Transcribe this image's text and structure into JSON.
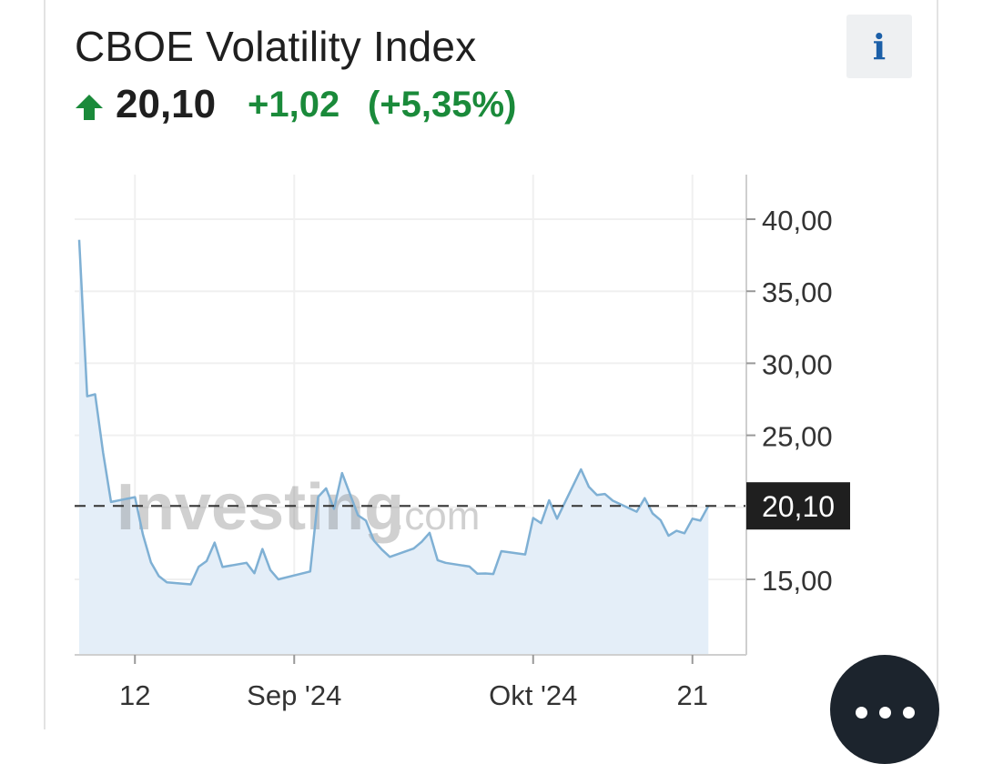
{
  "header": {
    "title": "CBOE Volatility Index",
    "info_label": "i",
    "price": "20,10",
    "change": "+1,02",
    "change_pct": "(+5,35%)",
    "direction": "up"
  },
  "watermark": {
    "brand": "Investing",
    "suffix": ".com"
  },
  "colors": {
    "up": "#1a8a3a",
    "line": "#7fb0d4",
    "area": "#e4eef8",
    "price_tag_bg": "#1f1f1f",
    "more_button": "#1c242d"
  },
  "more_button": {
    "icon": "more-horizontal-icon"
  },
  "chart_data": {
    "type": "area",
    "ylim": [
      10,
      40
    ],
    "yticks": [
      {
        "value": 15,
        "label": "15,00"
      },
      {
        "value": 20,
        "label": "20,00"
      },
      {
        "value": 25,
        "label": "25,00"
      },
      {
        "value": 30,
        "label": "30,00"
      },
      {
        "value": 35,
        "label": "35,00"
      },
      {
        "value": 40,
        "label": "40,00"
      }
    ],
    "xlim": [
      "2024-08-05",
      "2024-10-24"
    ],
    "xticks": [
      {
        "x": "2024-08-12",
        "label": "12"
      },
      {
        "x": "2024-09-01",
        "label": "Sep '24"
      },
      {
        "x": "2024-10-01",
        "label": "Okt '24"
      },
      {
        "x": "2024-10-21",
        "label": "21"
      }
    ],
    "last_value": 20.1,
    "last_value_label": "20,10",
    "series": [
      {
        "points": [
          [
            "2024-08-05",
            38.57
          ],
          [
            "2024-08-06",
            27.71
          ],
          [
            "2024-08-07",
            27.85
          ],
          [
            "2024-08-08",
            23.79
          ],
          [
            "2024-08-09",
            20.37
          ],
          [
            "2024-08-12",
            20.71
          ],
          [
            "2024-08-13",
            18.12
          ],
          [
            "2024-08-14",
            16.19
          ],
          [
            "2024-08-15",
            15.23
          ],
          [
            "2024-08-16",
            14.8
          ],
          [
            "2024-08-19",
            14.65
          ],
          [
            "2024-08-20",
            15.88
          ],
          [
            "2024-08-21",
            16.27
          ],
          [
            "2024-08-22",
            17.55
          ],
          [
            "2024-08-23",
            15.86
          ],
          [
            "2024-08-26",
            16.15
          ],
          [
            "2024-08-27",
            15.43
          ],
          [
            "2024-08-28",
            17.11
          ],
          [
            "2024-08-29",
            15.65
          ],
          [
            "2024-08-30",
            15.0
          ],
          [
            "2024-09-03",
            15.55
          ],
          [
            "2024-09-04",
            20.72
          ],
          [
            "2024-09-05",
            21.32
          ],
          [
            "2024-09-06",
            19.9
          ],
          [
            "2024-09-07",
            22.38
          ],
          [
            "2024-09-09",
            19.45
          ],
          [
            "2024-09-10",
            19.08
          ],
          [
            "2024-09-11",
            17.69
          ],
          [
            "2024-09-12",
            17.07
          ],
          [
            "2024-09-13",
            16.56
          ],
          [
            "2024-09-16",
            17.14
          ],
          [
            "2024-09-17",
            17.61
          ],
          [
            "2024-09-18",
            18.23
          ],
          [
            "2024-09-19",
            16.33
          ],
          [
            "2024-09-20",
            16.15
          ],
          [
            "2024-09-23",
            15.89
          ],
          [
            "2024-09-24",
            15.39
          ],
          [
            "2024-09-25",
            15.41
          ],
          [
            "2024-09-26",
            15.37
          ],
          [
            "2024-09-27",
            16.96
          ],
          [
            "2024-09-30",
            16.73
          ],
          [
            "2024-10-01",
            19.26
          ],
          [
            "2024-10-02",
            18.9
          ],
          [
            "2024-10-03",
            20.49
          ],
          [
            "2024-10-04",
            19.21
          ],
          [
            "2024-10-07",
            22.64
          ],
          [
            "2024-10-08",
            21.42
          ],
          [
            "2024-10-09",
            20.86
          ],
          [
            "2024-10-10",
            20.93
          ],
          [
            "2024-10-11",
            20.46
          ],
          [
            "2024-10-14",
            19.7
          ],
          [
            "2024-10-15",
            20.64
          ],
          [
            "2024-10-16",
            19.58
          ],
          [
            "2024-10-17",
            19.11
          ],
          [
            "2024-10-18",
            18.03
          ],
          [
            "2024-10-19",
            18.37
          ],
          [
            "2024-10-20",
            18.2
          ],
          [
            "2024-10-21",
            19.21
          ],
          [
            "2024-10-22",
            19.08
          ],
          [
            "2024-10-23",
            20.1
          ]
        ]
      }
    ]
  }
}
